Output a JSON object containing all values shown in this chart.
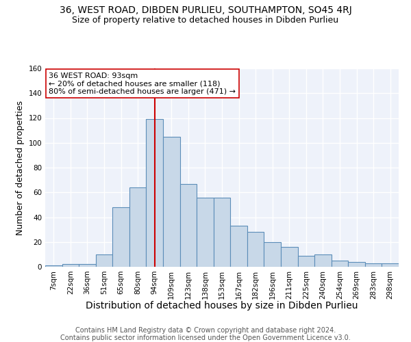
{
  "title1": "36, WEST ROAD, DIBDEN PURLIEU, SOUTHAMPTON, SO45 4RJ",
  "title2": "Size of property relative to detached houses in Dibden Purlieu",
  "xlabel": "Distribution of detached houses by size in Dibden Purlieu",
  "ylabel": "Number of detached properties",
  "bar_labels": [
    "7sqm",
    "22sqm",
    "36sqm",
    "51sqm",
    "65sqm",
    "80sqm",
    "94sqm",
    "109sqm",
    "123sqm",
    "138sqm",
    "153sqm",
    "167sqm",
    "182sqm",
    "196sqm",
    "211sqm",
    "225sqm",
    "240sqm",
    "254sqm",
    "269sqm",
    "283sqm",
    "298sqm"
  ],
  "bar_values": [
    1,
    2,
    2,
    10,
    48,
    64,
    119,
    105,
    67,
    56,
    56,
    33,
    28,
    20,
    16,
    9,
    10,
    5,
    4,
    3,
    3
  ],
  "bar_color": "#c8d8e8",
  "bar_edge_color": "#5b8db8",
  "vline_x_index": 6,
  "vline_color": "#cc0000",
  "annotation_text": "36 WEST ROAD: 93sqm\n← 20% of detached houses are smaller (118)\n80% of semi-detached houses are larger (471) →",
  "annotation_box_color": "white",
  "annotation_box_edge": "#cc0000",
  "ylim": [
    0,
    160
  ],
  "yticks": [
    0,
    20,
    40,
    60,
    80,
    100,
    120,
    140,
    160
  ],
  "footer1": "Contains HM Land Registry data © Crown copyright and database right 2024.",
  "footer2": "Contains public sector information licensed under the Open Government Licence v3.0.",
  "background_color": "#eef2fa",
  "grid_color": "white",
  "title1_fontsize": 10,
  "title2_fontsize": 9,
  "xlabel_fontsize": 10,
  "ylabel_fontsize": 9,
  "tick_fontsize": 7.5,
  "footer_fontsize": 7,
  "annotation_fontsize": 8
}
